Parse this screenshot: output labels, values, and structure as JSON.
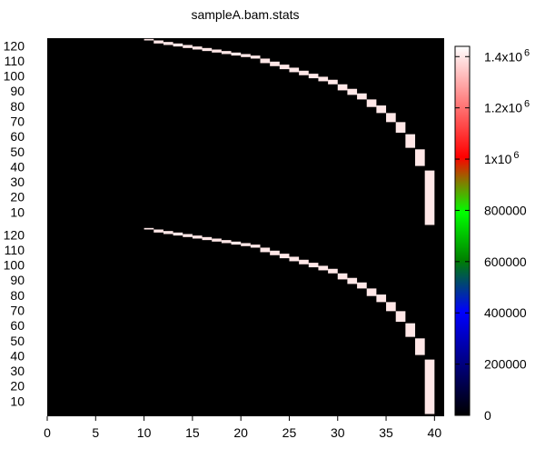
{
  "chart_data": {
    "type": "heatmap",
    "title": "sampleA.bam.stats",
    "xlabel": "",
    "ylabel": "",
    "x_range": [
      0,
      41
    ],
    "x_ticks": [
      0,
      5,
      10,
      15,
      20,
      25,
      30,
      35,
      40
    ],
    "panel_y_range": [
      0,
      125
    ],
    "panel_y_ticks": [
      10,
      20,
      30,
      40,
      50,
      60,
      70,
      80,
      90,
      100,
      110,
      120
    ],
    "background_color": "#000000",
    "colorbar": {
      "min": 0,
      "max": 1440000,
      "ticks": [
        {
          "value": 0,
          "label": "0",
          "exp": ""
        },
        {
          "value": 200000,
          "label": "200000",
          "exp": ""
        },
        {
          "value": 400000,
          "label": "400000",
          "exp": ""
        },
        {
          "value": 600000,
          "label": "600000",
          "exp": ""
        },
        {
          "value": 800000,
          "label": "800000",
          "exp": ""
        },
        {
          "value": 1000000,
          "label": "1x10",
          "exp": "6"
        },
        {
          "value": 1200000,
          "label": "1.2x10",
          "exp": "6"
        },
        {
          "value": 1400000,
          "label": "1.4x10",
          "exp": "6"
        }
      ],
      "stops": [
        {
          "offset": 0.0,
          "color": "#000000"
        },
        {
          "offset": 0.14,
          "color": "#00007f"
        },
        {
          "offset": 0.28,
          "color": "#0000ff"
        },
        {
          "offset": 0.42,
          "color": "#007f00"
        },
        {
          "offset": 0.55,
          "color": "#00ff00"
        },
        {
          "offset": 0.63,
          "color": "#7f7f00"
        },
        {
          "offset": 0.7,
          "color": "#ff0000"
        },
        {
          "offset": 0.85,
          "color": "#ff7f7f"
        },
        {
          "offset": 1.0,
          "color": "#ffffff"
        }
      ]
    },
    "panels": [
      {
        "cells": [
          {
            "x": 10.5,
            "y": 124,
            "h": 1,
            "value": 1400000
          },
          {
            "x": 11.5,
            "y": 123,
            "h": 2,
            "value": 1400000
          },
          {
            "x": 12.5,
            "y": 122,
            "h": 2,
            "value": 1400000
          },
          {
            "x": 13.5,
            "y": 121,
            "h": 2,
            "value": 1400000
          },
          {
            "x": 14.5,
            "y": 120,
            "h": 2,
            "value": 1400000
          },
          {
            "x": 15.5,
            "y": 119,
            "h": 2,
            "value": 1400000
          },
          {
            "x": 16.5,
            "y": 118,
            "h": 2,
            "value": 1400000
          },
          {
            "x": 17.5,
            "y": 117,
            "h": 2,
            "value": 1400000
          },
          {
            "x": 18.5,
            "y": 116,
            "h": 2,
            "value": 1400000
          },
          {
            "x": 19.5,
            "y": 115,
            "h": 2,
            "value": 1400000
          },
          {
            "x": 20.5,
            "y": 114,
            "h": 2,
            "value": 1400000
          },
          {
            "x": 21.5,
            "y": 113,
            "h": 2,
            "value": 1400000
          },
          {
            "x": 22.5,
            "y": 111,
            "h": 3,
            "value": 1400000
          },
          {
            "x": 23.5,
            "y": 109,
            "h": 3,
            "value": 1400000
          },
          {
            "x": 24.5,
            "y": 107,
            "h": 3,
            "value": 1400000
          },
          {
            "x": 25.5,
            "y": 105,
            "h": 3,
            "value": 1400000
          },
          {
            "x": 26.5,
            "y": 103,
            "h": 3,
            "value": 1400000
          },
          {
            "x": 27.5,
            "y": 101,
            "h": 3,
            "value": 1400000
          },
          {
            "x": 28.5,
            "y": 99,
            "h": 3,
            "value": 1400000
          },
          {
            "x": 29.5,
            "y": 97,
            "h": 3,
            "value": 1400000
          },
          {
            "x": 30.5,
            "y": 94,
            "h": 4,
            "value": 1400000
          },
          {
            "x": 31.5,
            "y": 91,
            "h": 4,
            "value": 1400000
          },
          {
            "x": 32.5,
            "y": 88,
            "h": 4,
            "value": 1400000
          },
          {
            "x": 33.5,
            "y": 84,
            "h": 5,
            "value": 1400000
          },
          {
            "x": 34.5,
            "y": 80,
            "h": 5,
            "value": 1400000
          },
          {
            "x": 35.5,
            "y": 75,
            "h": 6,
            "value": 1400000
          },
          {
            "x": 36.5,
            "y": 69,
            "h": 7,
            "value": 1400000
          },
          {
            "x": 37.5,
            "y": 61,
            "h": 9,
            "value": 1400000
          },
          {
            "x": 38.5,
            "y": 51,
            "h": 11,
            "value": 1400000
          },
          {
            "x": 39.5,
            "y": 37,
            "h": 36,
            "value": 1400000
          }
        ]
      },
      {
        "cells": [
          {
            "x": 10.5,
            "y": 124,
            "h": 1,
            "value": 1400000
          },
          {
            "x": 11.5,
            "y": 123,
            "h": 2,
            "value": 1400000
          },
          {
            "x": 12.5,
            "y": 122,
            "h": 2,
            "value": 1400000
          },
          {
            "x": 13.5,
            "y": 121,
            "h": 2,
            "value": 1400000
          },
          {
            "x": 14.5,
            "y": 120,
            "h": 2,
            "value": 1400000
          },
          {
            "x": 15.5,
            "y": 119,
            "h": 2,
            "value": 1400000
          },
          {
            "x": 16.5,
            "y": 118,
            "h": 2,
            "value": 1400000
          },
          {
            "x": 17.5,
            "y": 117,
            "h": 2,
            "value": 1400000
          },
          {
            "x": 18.5,
            "y": 116,
            "h": 2,
            "value": 1400000
          },
          {
            "x": 19.5,
            "y": 115,
            "h": 2,
            "value": 1400000
          },
          {
            "x": 20.5,
            "y": 114,
            "h": 2,
            "value": 1400000
          },
          {
            "x": 21.5,
            "y": 113,
            "h": 2,
            "value": 1400000
          },
          {
            "x": 22.5,
            "y": 111,
            "h": 3,
            "value": 1400000
          },
          {
            "x": 23.5,
            "y": 109,
            "h": 3,
            "value": 1400000
          },
          {
            "x": 24.5,
            "y": 107,
            "h": 3,
            "value": 1400000
          },
          {
            "x": 25.5,
            "y": 105,
            "h": 3,
            "value": 1400000
          },
          {
            "x": 26.5,
            "y": 103,
            "h": 3,
            "value": 1400000
          },
          {
            "x": 27.5,
            "y": 101,
            "h": 3,
            "value": 1400000
          },
          {
            "x": 28.5,
            "y": 99,
            "h": 3,
            "value": 1400000
          },
          {
            "x": 29.5,
            "y": 97,
            "h": 3,
            "value": 1400000
          },
          {
            "x": 30.5,
            "y": 94,
            "h": 4,
            "value": 1400000
          },
          {
            "x": 31.5,
            "y": 91,
            "h": 4,
            "value": 1400000
          },
          {
            "x": 32.5,
            "y": 88,
            "h": 4,
            "value": 1400000
          },
          {
            "x": 33.5,
            "y": 84,
            "h": 5,
            "value": 1400000
          },
          {
            "x": 34.5,
            "y": 80,
            "h": 5,
            "value": 1400000
          },
          {
            "x": 35.5,
            "y": 75,
            "h": 6,
            "value": 1400000
          },
          {
            "x": 36.5,
            "y": 69,
            "h": 7,
            "value": 1400000
          },
          {
            "x": 37.5,
            "y": 61,
            "h": 9,
            "value": 1400000
          },
          {
            "x": 38.5,
            "y": 51,
            "h": 11,
            "value": 1400000
          },
          {
            "x": 39.5,
            "y": 37,
            "h": 36,
            "value": 1400000
          }
        ]
      }
    ]
  }
}
